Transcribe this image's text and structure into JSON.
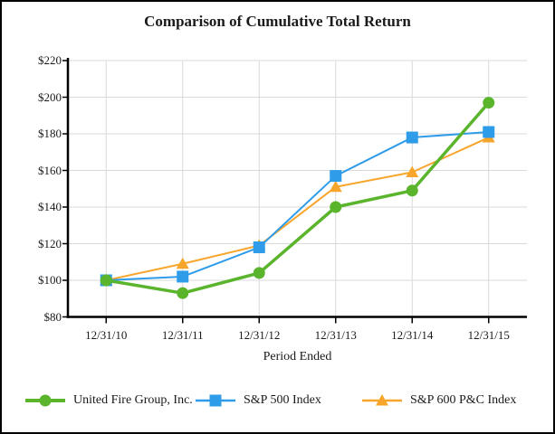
{
  "chart_data": {
    "type": "line",
    "title": "Comparison of Cumulative Total Return",
    "xlabel": "Period Ended",
    "ylabel": "",
    "categories": [
      "12/31/10",
      "12/31/11",
      "12/31/12",
      "12/31/13",
      "12/31/14",
      "12/31/15"
    ],
    "series": [
      {
        "name": "United Fire Group, Inc.",
        "marker": "circle",
        "color": "#5ab52d",
        "line_width": 3.5,
        "values": [
          100,
          93,
          104,
          140,
          149,
          197
        ]
      },
      {
        "name": "S&P 500 Index",
        "marker": "square",
        "color": "#2e9ce9",
        "line_width": 2,
        "values": [
          100,
          102,
          118,
          157,
          178,
          181
        ]
      },
      {
        "name": "S&P 600 P&C Index",
        "marker": "triangle",
        "color": "#f7a52b",
        "line_width": 2,
        "values": [
          100,
          109,
          119,
          151,
          159,
          178
        ]
      }
    ],
    "ylim": [
      80,
      220
    ],
    "ytick_step": 20,
    "ytick_labels": [
      "$80",
      "$100",
      "$120",
      "$140",
      "$160",
      "$180",
      "$200",
      "$220"
    ],
    "grid": true,
    "legend_position": "bottom"
  },
  "colors": {
    "grid": "#d9d9d9",
    "axis": "#000000",
    "text": "#1a1a1a",
    "background": "#ffffff",
    "border": "#000000"
  }
}
